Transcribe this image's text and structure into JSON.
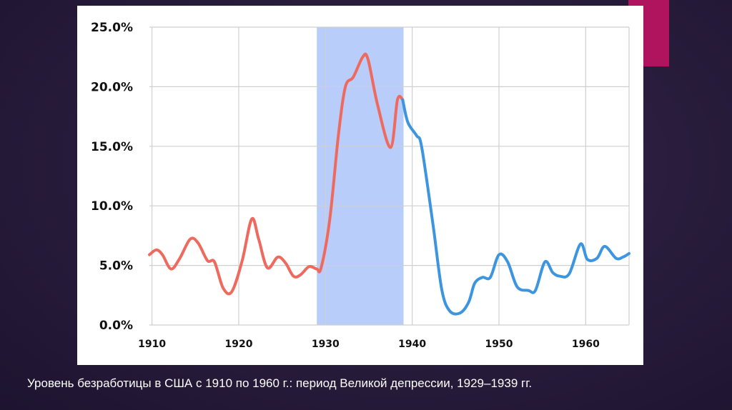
{
  "slide": {
    "caption": "Уровень безработицы в США с 1910 по 1960 г.: период Великой депрессии, 1929–1939 гг.",
    "accent_color": "#b0145e"
  },
  "chart_data": {
    "type": "line",
    "title": "",
    "xlabel": "",
    "ylabel": "",
    "xlim": [
      1909.7,
      1965
    ],
    "ylim": [
      0,
      25
    ],
    "grid": true,
    "legend": "none",
    "yticks": [
      {
        "value": 25,
        "label": "25.0%"
      },
      {
        "value": 20,
        "label": "20.0%"
      },
      {
        "value": 15,
        "label": "15.0%"
      },
      {
        "value": 10,
        "label": "10.0%"
      },
      {
        "value": 5,
        "label": "5.0%"
      },
      {
        "value": 0,
        "label": "0.0%"
      }
    ],
    "xticks": [
      {
        "value": 1910,
        "label": "1910"
      },
      {
        "value": 1920,
        "label": "1920"
      },
      {
        "value": 1930,
        "label": "1930"
      },
      {
        "value": 1940,
        "label": "1940"
      },
      {
        "value": 1950,
        "label": "1950"
      },
      {
        "value": 1960,
        "label": "1960"
      }
    ],
    "highlight": {
      "from": 1929,
      "to": 1939,
      "color": "#b8cdfa"
    },
    "series": [
      {
        "color": "#ef6a5e",
        "points": [
          [
            1909.7,
            5.9
          ],
          [
            1910.5,
            6.3
          ],
          [
            1911.2,
            5.9
          ],
          [
            1912.2,
            4.7
          ],
          [
            1913.2,
            5.6
          ],
          [
            1914.4,
            7.2
          ],
          [
            1915.3,
            6.9
          ],
          [
            1916.4,
            5.4
          ],
          [
            1917.2,
            5.3
          ],
          [
            1918.2,
            3.1
          ],
          [
            1919.2,
            2.8
          ],
          [
            1920.4,
            5.4
          ],
          [
            1921.5,
            8.9
          ],
          [
            1922.3,
            7.2
          ],
          [
            1923.3,
            4.8
          ],
          [
            1924.5,
            5.7
          ],
          [
            1925.4,
            5.2
          ],
          [
            1926.3,
            4.1
          ],
          [
            1927.1,
            4.2
          ],
          [
            1928.1,
            4.9
          ],
          [
            1929.0,
            4.7
          ],
          [
            1929.5,
            4.8
          ],
          [
            1930.5,
            8.9
          ],
          [
            1931.5,
            16.0
          ],
          [
            1932.3,
            20.0
          ],
          [
            1933.2,
            20.8
          ],
          [
            1934.3,
            22.5
          ],
          [
            1934.9,
            22.3
          ],
          [
            1936.0,
            18.5
          ],
          [
            1937.5,
            14.9
          ],
          [
            1938.3,
            18.9
          ],
          [
            1938.9,
            18.9
          ]
        ]
      },
      {
        "color": "#3d95e0",
        "points": [
          [
            1938.9,
            18.9
          ],
          [
            1939.5,
            17.0
          ],
          [
            1940.5,
            15.9
          ],
          [
            1941.1,
            14.9
          ],
          [
            1942.4,
            8.4
          ],
          [
            1943.4,
            3.0
          ],
          [
            1944.3,
            1.2
          ],
          [
            1945.5,
            1.0
          ],
          [
            1946.5,
            1.9
          ],
          [
            1947.2,
            3.5
          ],
          [
            1948.1,
            4.0
          ],
          [
            1949.0,
            4.0
          ],
          [
            1950.0,
            5.9
          ],
          [
            1951.0,
            5.3
          ],
          [
            1952.1,
            3.2
          ],
          [
            1953.4,
            2.9
          ],
          [
            1954.2,
            2.9
          ],
          [
            1955.3,
            5.3
          ],
          [
            1956.2,
            4.4
          ],
          [
            1957.0,
            4.1
          ],
          [
            1958.1,
            4.3
          ],
          [
            1959.4,
            6.8
          ],
          [
            1960.2,
            5.5
          ],
          [
            1961.3,
            5.6
          ],
          [
            1962.2,
            6.6
          ],
          [
            1963.5,
            5.6
          ],
          [
            1964.3,
            5.7
          ],
          [
            1965.0,
            6.0
          ]
        ]
      }
    ]
  }
}
